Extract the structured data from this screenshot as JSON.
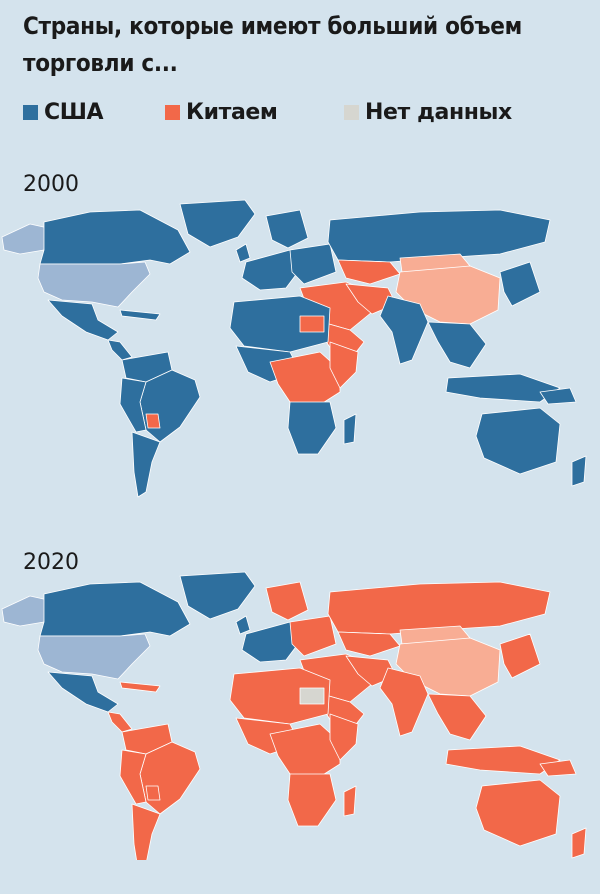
{
  "title": "Страны, которые имеют больший объем торговли с...",
  "legend": [
    {
      "label": "США",
      "color": "#2e6f9e"
    },
    {
      "label": "Китаем",
      "color": "#f26849"
    },
    {
      "label": "Нет данных",
      "color": "#d6d6d0"
    }
  ],
  "colors": {
    "usa": "#2e6f9e",
    "china": "#f26849",
    "no_data": "#d6d6d0",
    "usa_itself": "#9db6d3",
    "china_itself": "#f8ad94",
    "ocean": "#d4e3ed",
    "border": "#ffffff"
  },
  "maps": [
    {
      "year": "2000",
      "dominant": "usa"
    },
    {
      "year": "2020",
      "dominant": "china"
    }
  ]
}
